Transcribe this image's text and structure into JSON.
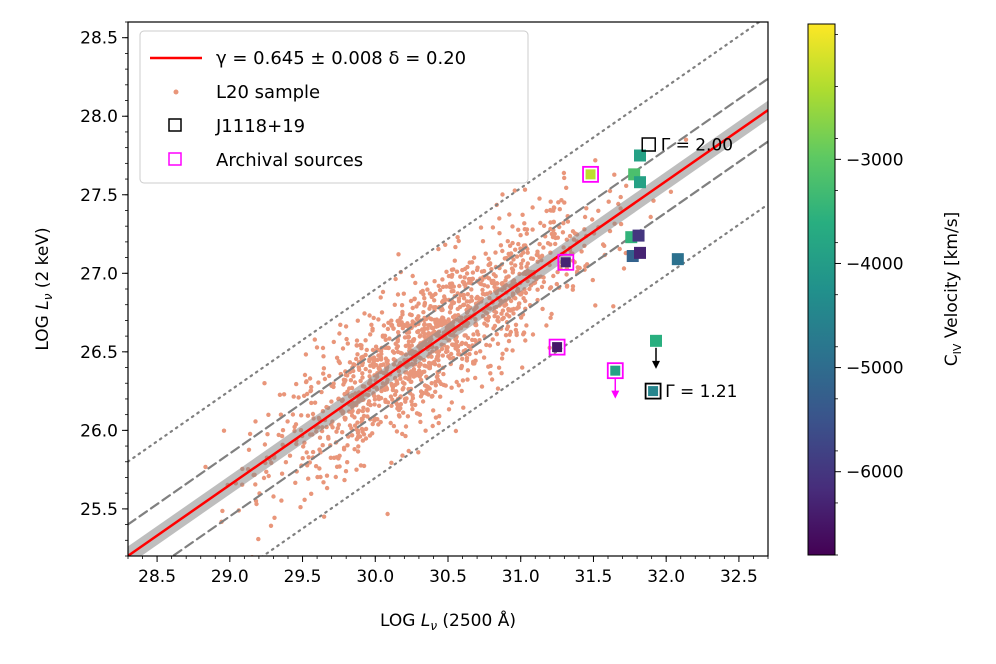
{
  "chart_data": {
    "type": "scatter",
    "xlabel": "LOG L_ν (2500 Å)",
    "ylabel": "LOG L_ν (2 keV)",
    "xlim": [
      28.3,
      32.7
    ],
    "ylim": [
      25.2,
      28.6
    ],
    "xticks": [
      "28.5",
      "29.0",
      "29.5",
      "30.0",
      "30.5",
      "31.0",
      "31.5",
      "32.0",
      "32.5"
    ],
    "yticks": [
      "25.5",
      "26.0",
      "26.5",
      "27.0",
      "27.5",
      "28.0",
      "28.5"
    ],
    "relation": {
      "slope": 0.645,
      "intercept_at_30_5": 26.62,
      "dashed_offset": 0.2,
      "dotted_offset": 0.6,
      "color": "#ff0000",
      "band_color": "#888888"
    },
    "legend": {
      "fit_label": "γ = 0.645 ± 0.008   δ = 0.20",
      "sample_label": "L20 sample",
      "target_label": "J1118+19",
      "archival_label": "Archival sources"
    },
    "l20_sample": {
      "color": "#e9967a",
      "n": 1400,
      "x_mean": 30.4,
      "x_sd": 0.55,
      "scatter": 0.22
    },
    "sources": [
      {
        "x": 31.91,
        "y": 26.25,
        "v": -4500,
        "edge": "#000000",
        "kind": "target"
      },
      {
        "x": 31.78,
        "y": 27.63,
        "v": -3200,
        "edge": "none",
        "kind": "plain"
      },
      {
        "x": 31.82,
        "y": 27.75,
        "v": -3900,
        "edge": "none",
        "kind": "plain"
      },
      {
        "x": 31.82,
        "y": 27.58,
        "v": -3900,
        "edge": "none",
        "kind": "plain"
      },
      {
        "x": 31.76,
        "y": 27.23,
        "v": -3500,
        "edge": "none",
        "kind": "plain"
      },
      {
        "x": 31.81,
        "y": 27.24,
        "v": -6000,
        "edge": "none",
        "kind": "plain"
      },
      {
        "x": 31.77,
        "y": 27.11,
        "v": -5200,
        "edge": "none",
        "kind": "plain"
      },
      {
        "x": 31.82,
        "y": 27.13,
        "v": -6300,
        "edge": "none",
        "kind": "plain"
      },
      {
        "x": 32.08,
        "y": 27.09,
        "v": -4900,
        "edge": "none",
        "kind": "plain"
      },
      {
        "x": 31.93,
        "y": 26.57,
        "v": -3600,
        "edge": "none",
        "kind": "upper"
      },
      {
        "x": 31.48,
        "y": 27.63,
        "v": -2200,
        "edge": "#ff00ff",
        "kind": "archival"
      },
      {
        "x": 31.31,
        "y": 27.07,
        "v": -6300,
        "edge": "#ff00ff",
        "kind": "archival"
      },
      {
        "x": 31.25,
        "y": 26.53,
        "v": -6500,
        "edge": "#ff00ff",
        "kind": "archival"
      },
      {
        "x": 31.65,
        "y": 26.38,
        "v": -3900,
        "edge": "#ff00ff",
        "kind": "archival-upper"
      }
    ],
    "gamma_labels": [
      {
        "text": "Γ = 2.00",
        "x": 31.88,
        "y": 27.82
      },
      {
        "text": "Γ = 1.21",
        "x": 31.91,
        "y": 26.25
      }
    ],
    "colorbar": {
      "label": "C_IV Velocity [km/s]",
      "vmin": -6800,
      "vmax": -1700,
      "ticks": [
        "−3000",
        "−4000",
        "−5000",
        "−6000"
      ],
      "tick_values": [
        -3000,
        -4000,
        -5000,
        -6000
      ]
    }
  }
}
